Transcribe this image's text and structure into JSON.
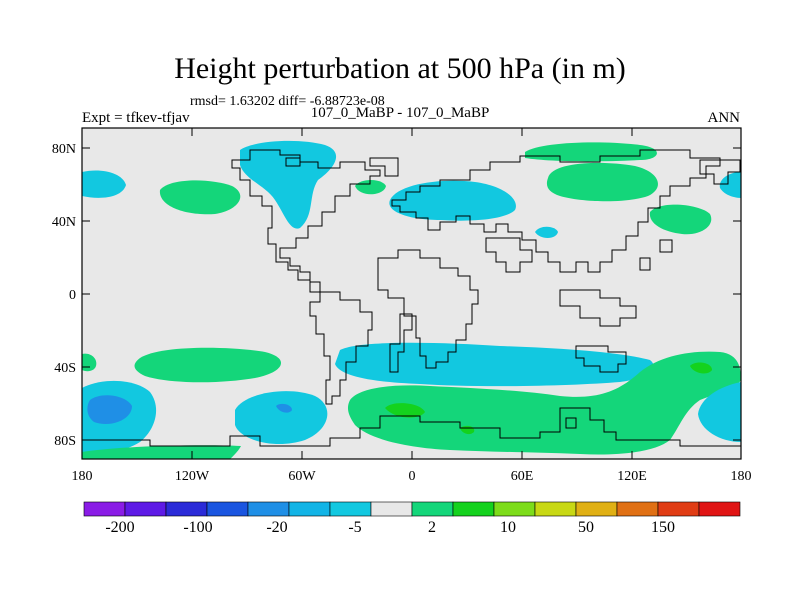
{
  "title": "Height perturbation at 500 hPa (in m)",
  "stats": "rmsd= 1.63202 diff= -6.88723e-08",
  "left_label": "Expt = tfkev-tfjav",
  "center_label": "107_0_MaBP - 107_0_MaBP",
  "right_label": "ANN",
  "map": {
    "lat_ticks": [
      "80N",
      "40N",
      "0",
      "40S",
      "80S"
    ],
    "lon_ticks": [
      "180",
      "120W",
      "60W",
      "0",
      "60E",
      "120E",
      "180"
    ]
  },
  "colorbar": {
    "colors": [
      "#8a1ce6",
      "#5e1ae6",
      "#2b2bd8",
      "#1a55e0",
      "#1f8fe6",
      "#12b4e6",
      "#12c8e0",
      "#e8e8e8",
      "#14d67a",
      "#14d21e",
      "#7ddc1a",
      "#c8d814",
      "#e0b014",
      "#e07014",
      "#e03c14",
      "#e01414"
    ],
    "labels": [
      "-200",
      "-100",
      "-20",
      "-5",
      "2",
      "10",
      "50",
      "150"
    ]
  }
}
